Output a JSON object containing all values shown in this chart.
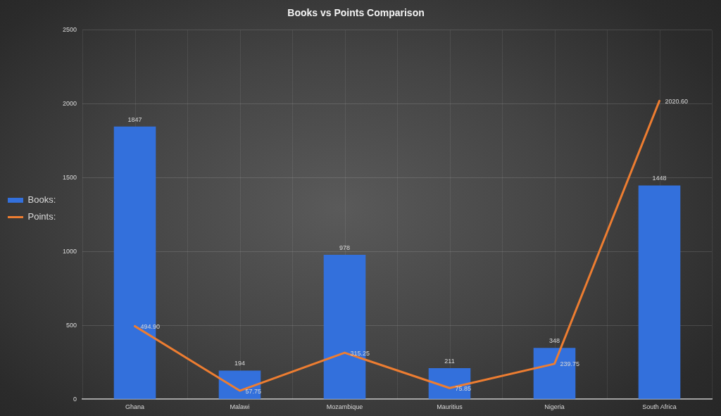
{
  "chart_data": {
    "type": "bar",
    "title": "Books vs Points Comparison",
    "categories": [
      "Ghana",
      "Malawi",
      "Mozambique",
      "Mauritius",
      "Nigeria",
      "South Africa"
    ],
    "series": [
      {
        "name": "Books:",
        "color": "#3370dc",
        "values": [
          1847,
          194,
          978,
          211,
          348,
          1448
        ],
        "value_labels": [
          "1847",
          "194",
          "978",
          "211",
          "348",
          "1448"
        ]
      },
      {
        "name": "Points:",
        "type": "line",
        "color": "#ed7d31",
        "values": [
          494.9,
          57.75,
          315.25,
          75.85,
          239.75,
          2020.6
        ],
        "value_labels": [
          "494.90",
          "57.75",
          "315.25",
          "75.85",
          "239.75",
          "2020.60"
        ]
      }
    ],
    "ylim": [
      0,
      2500
    ],
    "yticks": [
      0,
      500,
      1000,
      1500,
      2000,
      2500
    ],
    "grid": true,
    "legend": "left",
    "marker": "none",
    "line_style": "solid"
  }
}
